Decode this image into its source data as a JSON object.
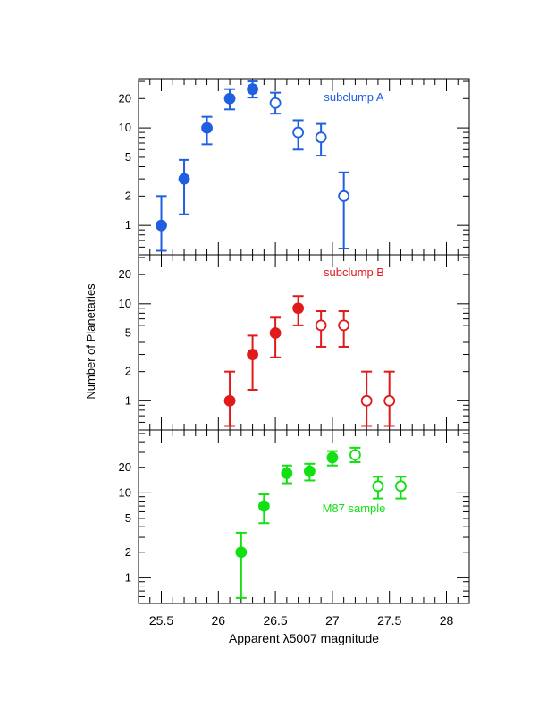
{
  "figure": {
    "ylabel": "Number of Planetaries",
    "xlabel": "Apparent λ5007 magnitude"
  },
  "chart_data": [
    {
      "type": "scatter",
      "y_scale": "log",
      "xlim": [
        25.3,
        28.2
      ],
      "ylim": [
        0.5,
        32
      ],
      "x_ticks": [
        25.5,
        26,
        26.5,
        27,
        27.5,
        28
      ],
      "x_tick_labels": [],
      "y_ticks": [
        1,
        2,
        5,
        10,
        20
      ],
      "y_tick_labels": [
        "1",
        "2",
        "5",
        "10",
        "20"
      ],
      "annotation": "subclump A",
      "color": "#1f5fe0",
      "points": [
        {
          "x": 25.5,
          "y": 1,
          "yerr_low": 0.55,
          "yerr_high": 2.0,
          "filled": true
        },
        {
          "x": 25.7,
          "y": 3,
          "yerr_low": 1.3,
          "yerr_high": 4.7,
          "filled": true
        },
        {
          "x": 25.9,
          "y": 10,
          "yerr_low": 6.8,
          "yerr_high": 13,
          "filled": true
        },
        {
          "x": 26.1,
          "y": 20,
          "yerr_low": 15.5,
          "yerr_high": 25,
          "filled": true
        },
        {
          "x": 26.3,
          "y": 25,
          "yerr_low": 20.5,
          "yerr_high": 30,
          "filled": true
        },
        {
          "x": 26.5,
          "y": 18,
          "yerr_low": 14,
          "yerr_high": 23,
          "filled": false
        },
        {
          "x": 26.7,
          "y": 9,
          "yerr_low": 6,
          "yerr_high": 12,
          "filled": false
        },
        {
          "x": 26.9,
          "y": 8,
          "yerr_low": 5.2,
          "yerr_high": 11,
          "filled": false
        },
        {
          "x": 27.1,
          "y": 2,
          "yerr_low": 0.58,
          "yerr_high": 3.5,
          "filled": false
        }
      ]
    },
    {
      "type": "scatter",
      "y_scale": "log",
      "xlim": [
        25.3,
        28.2
      ],
      "ylim": [
        0.5,
        32
      ],
      "x_ticks": [
        25.5,
        26,
        26.5,
        27,
        27.5,
        28
      ],
      "x_tick_labels": [],
      "y_ticks": [
        1,
        2,
        5,
        10,
        20
      ],
      "y_tick_labels": [
        "1",
        "2",
        "5",
        "10",
        "20"
      ],
      "annotation": "subclump B",
      "color": "#e01a1a",
      "points": [
        {
          "x": 26.1,
          "y": 1,
          "yerr_low": 0.55,
          "yerr_high": 2.0,
          "filled": true
        },
        {
          "x": 26.3,
          "y": 3,
          "yerr_low": 1.3,
          "yerr_high": 4.7,
          "filled": true
        },
        {
          "x": 26.5,
          "y": 5,
          "yerr_low": 2.8,
          "yerr_high": 7.2,
          "filled": true
        },
        {
          "x": 26.7,
          "y": 9,
          "yerr_low": 6,
          "yerr_high": 12,
          "filled": true
        },
        {
          "x": 26.9,
          "y": 6,
          "yerr_low": 3.6,
          "yerr_high": 8.4,
          "filled": false
        },
        {
          "x": 27.1,
          "y": 6,
          "yerr_low": 3.6,
          "yerr_high": 8.4,
          "filled": false
        },
        {
          "x": 27.3,
          "y": 1,
          "yerr_low": 0.55,
          "yerr_high": 2.0,
          "filled": false
        },
        {
          "x": 27.5,
          "y": 1,
          "yerr_low": 0.55,
          "yerr_high": 2.0,
          "filled": false
        }
      ]
    },
    {
      "type": "scatter",
      "y_scale": "log",
      "xlim": [
        25.3,
        28.2
      ],
      "ylim": [
        0.5,
        55
      ],
      "x_ticks": [
        25.5,
        26,
        26.5,
        27,
        27.5,
        28
      ],
      "x_tick_labels": [
        "25.5",
        "26",
        "26.5",
        "27",
        "27.5",
        "28"
      ],
      "y_ticks": [
        1,
        2,
        5,
        10,
        20
      ],
      "y_tick_labels": [
        "1",
        "2",
        "5",
        "10",
        "20"
      ],
      "annotation": "M87 sample",
      "color": "#11e011",
      "points": [
        {
          "x": 26.2,
          "y": 2,
          "yerr_low": 0.58,
          "yerr_high": 3.4,
          "filled": true
        },
        {
          "x": 26.4,
          "y": 7,
          "yerr_low": 4.4,
          "yerr_high": 9.6,
          "filled": true
        },
        {
          "x": 26.6,
          "y": 17,
          "yerr_low": 13,
          "yerr_high": 21,
          "filled": true
        },
        {
          "x": 26.8,
          "y": 18,
          "yerr_low": 14,
          "yerr_high": 22,
          "filled": true
        },
        {
          "x": 27.0,
          "y": 26,
          "yerr_low": 21,
          "yerr_high": 31,
          "filled": true
        },
        {
          "x": 27.2,
          "y": 28,
          "yerr_low": 23,
          "yerr_high": 34,
          "filled": false
        },
        {
          "x": 27.4,
          "y": 12,
          "yerr_low": 8.6,
          "yerr_high": 15.5,
          "filled": false
        },
        {
          "x": 27.6,
          "y": 12,
          "yerr_low": 8.6,
          "yerr_high": 15.5,
          "filled": false
        }
      ]
    }
  ]
}
